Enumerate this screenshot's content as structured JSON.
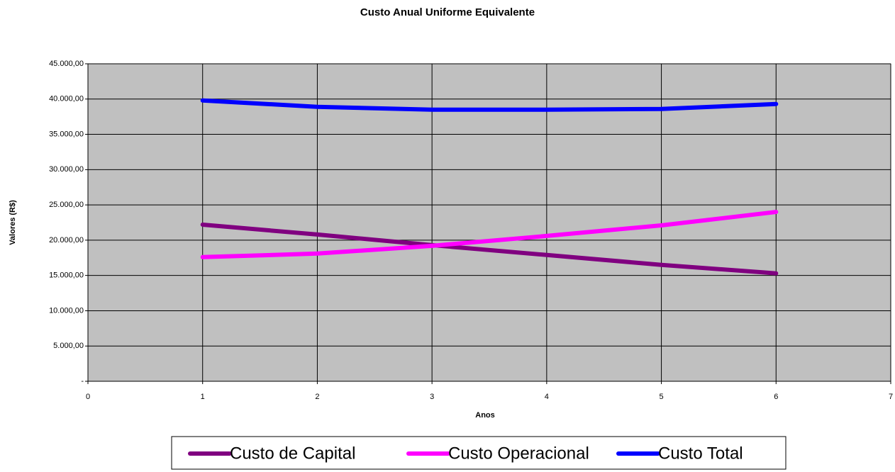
{
  "chart_data": {
    "type": "line",
    "title": "Custo Anual Uniforme Equivalente",
    "x_label": "Anos",
    "y_label": "Valores (R$)",
    "x": [
      1,
      2,
      3,
      4,
      5,
      6
    ],
    "series": [
      {
        "name": "Custo de Capital",
        "color": "#800080",
        "values": [
          22200,
          20800,
          19300,
          17900,
          16500,
          15300
        ]
      },
      {
        "name": "Custo Operacional",
        "color": "#ff00ff",
        "values": [
          17600,
          18100,
          19200,
          20600,
          22100,
          24000
        ]
      },
      {
        "name": "Custo Total",
        "color": "#0000ff",
        "values": [
          39800,
          38900,
          38500,
          38500,
          38600,
          39300
        ]
      }
    ],
    "xlim": [
      0,
      7
    ],
    "xticks": [
      0,
      1,
      2,
      3,
      4,
      5,
      6,
      7
    ],
    "ylim": [
      0,
      45000
    ],
    "yticks": [
      {
        "value": 0,
        "label": "-"
      },
      {
        "value": 5000,
        "label": "5.000,00"
      },
      {
        "value": 10000,
        "label": "10.000,00"
      },
      {
        "value": 15000,
        "label": "15.000,00"
      },
      {
        "value": 20000,
        "label": "20.000,00"
      },
      {
        "value": 25000,
        "label": "25.000,00"
      },
      {
        "value": 30000,
        "label": "30.000,00"
      },
      {
        "value": 35000,
        "label": "35.000,00"
      },
      {
        "value": 40000,
        "label": "40.000,00"
      },
      {
        "value": 45000,
        "label": "45.000,00"
      }
    ],
    "grid": true,
    "legend": "bottom",
    "plot_background": "#c0c0c0"
  }
}
